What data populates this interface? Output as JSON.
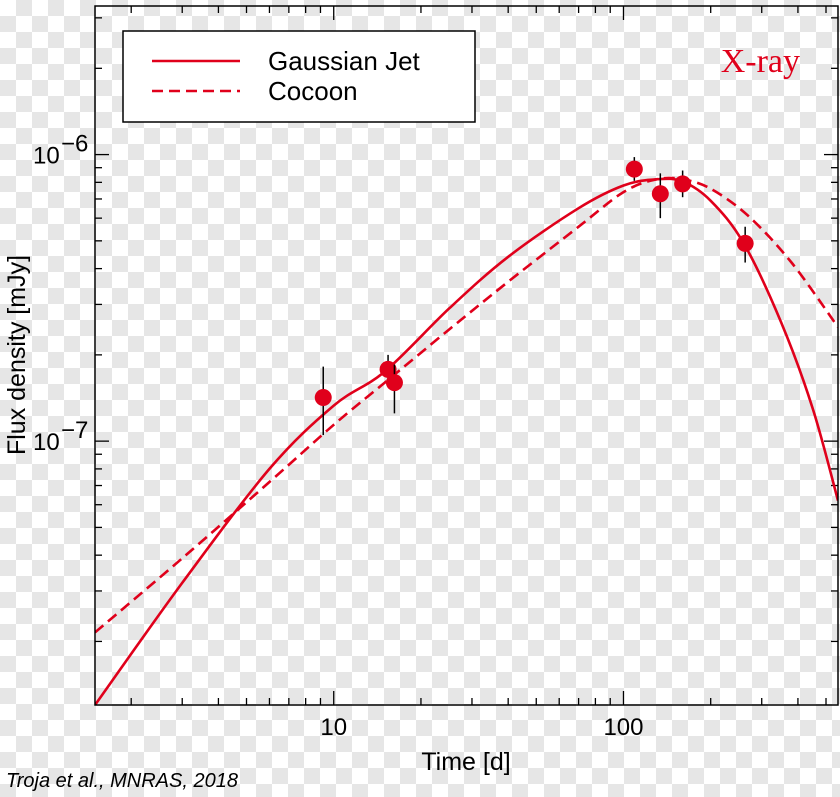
{
  "colors": {
    "series": "#e0001b",
    "axis": "#000000"
  },
  "chart_data": {
    "type": "line",
    "x_scale": "log",
    "y_scale": "log",
    "xlim": [
      1.5,
      550
    ],
    "ylim": [
      1.2e-08,
      3.3e-06
    ],
    "xlabel": "Time [d]",
    "ylabel": "Flux density [mJy]",
    "x_ticks": [
      {
        "value": 10,
        "label": "10"
      },
      {
        "value": 100,
        "label": "100"
      }
    ],
    "y_ticks": [
      {
        "value": 1e-07,
        "base": "10",
        "exp": "−7"
      },
      {
        "value": 1e-06,
        "base": "10",
        "exp": "−6"
      }
    ],
    "annotation": "X-ray",
    "legend": {
      "placement": "top-left",
      "entries": [
        "Gaussian Jet",
        "Cocoon"
      ]
    },
    "series": [
      {
        "name": "Gaussian Jet",
        "style": "solid",
        "points": [
          [
            1.5,
            1.2e-08
          ],
          [
            3,
            3.2e-08
          ],
          [
            6,
            8e-08
          ],
          [
            10,
            1.33e-07
          ],
          [
            15,
            1.75e-07
          ],
          [
            25,
            2.9e-07
          ],
          [
            40,
            4.4e-07
          ],
          [
            70,
            6.5e-07
          ],
          [
            100,
            7.8e-07
          ],
          [
            130,
            8.2e-07
          ],
          [
            160,
            8.05e-07
          ],
          [
            200,
            6.9e-07
          ],
          [
            260,
            4.9e-07
          ],
          [
            350,
            2.6e-07
          ],
          [
            450,
            1.3e-07
          ],
          [
            550,
            6.2e-08
          ]
        ]
      },
      {
        "name": "Cocoon",
        "style": "dashed",
        "points": [
          [
            1.5,
            2.15e-08
          ],
          [
            3,
            3.9e-08
          ],
          [
            6,
            7.2e-08
          ],
          [
            10,
            1.14e-07
          ],
          [
            15,
            1.6e-07
          ],
          [
            25,
            2.45e-07
          ],
          [
            40,
            3.6e-07
          ],
          [
            70,
            5.6e-07
          ],
          [
            100,
            7.4e-07
          ],
          [
            130,
            8.2e-07
          ],
          [
            160,
            8.2e-07
          ],
          [
            200,
            7.6e-07
          ],
          [
            270,
            6.1e-07
          ],
          [
            380,
            4.2e-07
          ],
          [
            550,
            2.5e-07
          ]
        ]
      },
      {
        "name": "data",
        "style": "markers",
        "points": [
          {
            "x": 9.2,
            "y": 1.42e-07,
            "lo": 1.05e-07,
            "hi": 1.82e-07
          },
          {
            "x": 15.4,
            "y": 1.78e-07,
            "lo": 1.55e-07,
            "hi": 2e-07
          },
          {
            "x": 16.2,
            "y": 1.6e-07,
            "lo": 1.25e-07,
            "hi": 1.85e-07
          },
          {
            "x": 109,
            "y": 8.9e-07,
            "lo": 8.1e-07,
            "hi": 9.8e-07
          },
          {
            "x": 134,
            "y": 7.3e-07,
            "lo": 6e-07,
            "hi": 8.6e-07
          },
          {
            "x": 160,
            "y": 7.9e-07,
            "lo": 7.1e-07,
            "hi": 8.8e-07
          },
          {
            "x": 263,
            "y": 4.9e-07,
            "lo": 4.2e-07,
            "hi": 5.6e-07
          }
        ]
      }
    ]
  },
  "credit": "Troja et al., MNRAS, 2018"
}
